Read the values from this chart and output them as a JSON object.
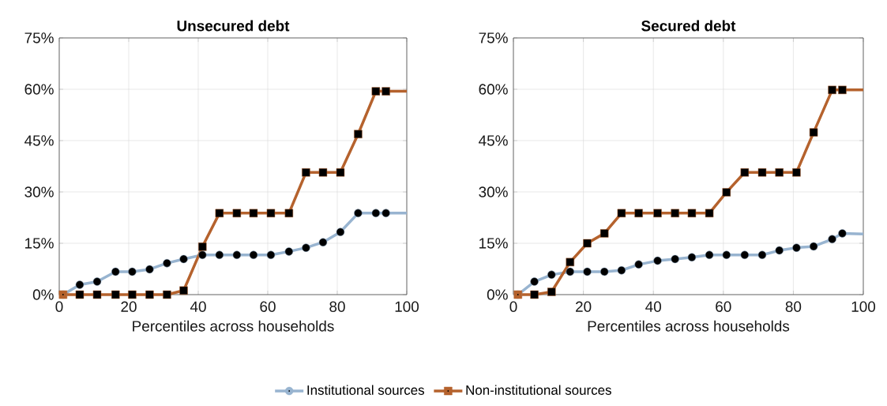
{
  "chart_data": [
    {
      "type": "line",
      "title": "Unsecured debt",
      "xlabel": "Percentiles across households",
      "x": [
        1.1,
        5.9,
        10.9,
        16.2,
        21,
        26,
        31,
        35.8,
        41.2,
        46.1,
        51.1,
        55.9,
        60.9,
        66.1,
        71,
        75.9,
        80.9,
        86,
        91.1,
        94,
        100
      ],
      "series": [
        {
          "name": "Institutional sources",
          "color": "#98b4d0",
          "marker": "circle",
          "values": [
            0,
            2.9,
            3.8,
            6.7,
            6.7,
            7.4,
            9.2,
            10.4,
            11.6,
            11.6,
            11.6,
            11.6,
            11.6,
            12.6,
            13.7,
            15.3,
            18.3,
            23.8,
            23.8,
            23.8,
            23.8
          ]
        },
        {
          "name": "Non-institutional sources",
          "color": "#b5622d",
          "marker": "square",
          "values": [
            0,
            0,
            0,
            0,
            0,
            0,
            0,
            1.2,
            14.0,
            23.8,
            23.8,
            23.8,
            23.8,
            23.8,
            35.7,
            35.7,
            35.7,
            46.9,
            59.4,
            59.4,
            59.4
          ]
        }
      ],
      "xlim": [
        0,
        100
      ],
      "xticks": [
        0,
        20,
        40,
        60,
        80,
        100
      ],
      "ylim": [
        0,
        75
      ],
      "yticks": [
        {
          "value": 0,
          "label": "0%"
        },
        {
          "value": 15,
          "label": "15%"
        },
        {
          "value": 30,
          "label": "30%"
        },
        {
          "value": 45,
          "label": "45%"
        },
        {
          "value": 60,
          "label": "60%"
        },
        {
          "value": 75,
          "label": "75%"
        }
      ],
      "grid": true,
      "legend": "bottom",
      "line_style": "solid"
    },
    {
      "type": "line",
      "title": "Secured debt",
      "xlabel": "Percentiles across households",
      "x": [
        1.3,
        6,
        10.9,
        16.2,
        21.1,
        26,
        30.9,
        35.8,
        41.2,
        46.2,
        51,
        56,
        60.9,
        66.1,
        71.1,
        76,
        80.9,
        85.8,
        91.1,
        94,
        100
      ],
      "series": [
        {
          "color": "#98b4d0",
          "marker": "circle",
          "values": [
            0,
            3.8,
            5.8,
            6.7,
            6.7,
            6.7,
            7.1,
            8.8,
            9.9,
            10.4,
            10.9,
            11.6,
            11.6,
            11.6,
            11.6,
            12.9,
            13.7,
            14.1,
            16.2,
            17.9,
            17.7
          ]
        },
        {
          "color": "#b5622d",
          "marker": "square",
          "values": [
            0,
            0,
            0.8,
            9.5,
            15.0,
            17.9,
            23.8,
            23.8,
            23.8,
            23.8,
            23.8,
            23.8,
            29.9,
            35.7,
            35.7,
            35.7,
            35.7,
            47.4,
            59.8,
            59.8,
            59.8
          ]
        }
      ],
      "xlim": [
        0,
        100
      ],
      "xticks": [
        0,
        20,
        40,
        60,
        80,
        100
      ],
      "ylim": [
        0,
        75
      ],
      "yticks": [
        {
          "value": 0,
          "label": "0%"
        },
        {
          "value": 15,
          "label": "15%"
        },
        {
          "value": 30,
          "label": "30%"
        },
        {
          "value": 45,
          "label": "45%"
        },
        {
          "value": 60,
          "label": "60%"
        },
        {
          "value": 75,
          "label": "75%"
        }
      ],
      "grid": true,
      "line_style": "solid"
    }
  ]
}
